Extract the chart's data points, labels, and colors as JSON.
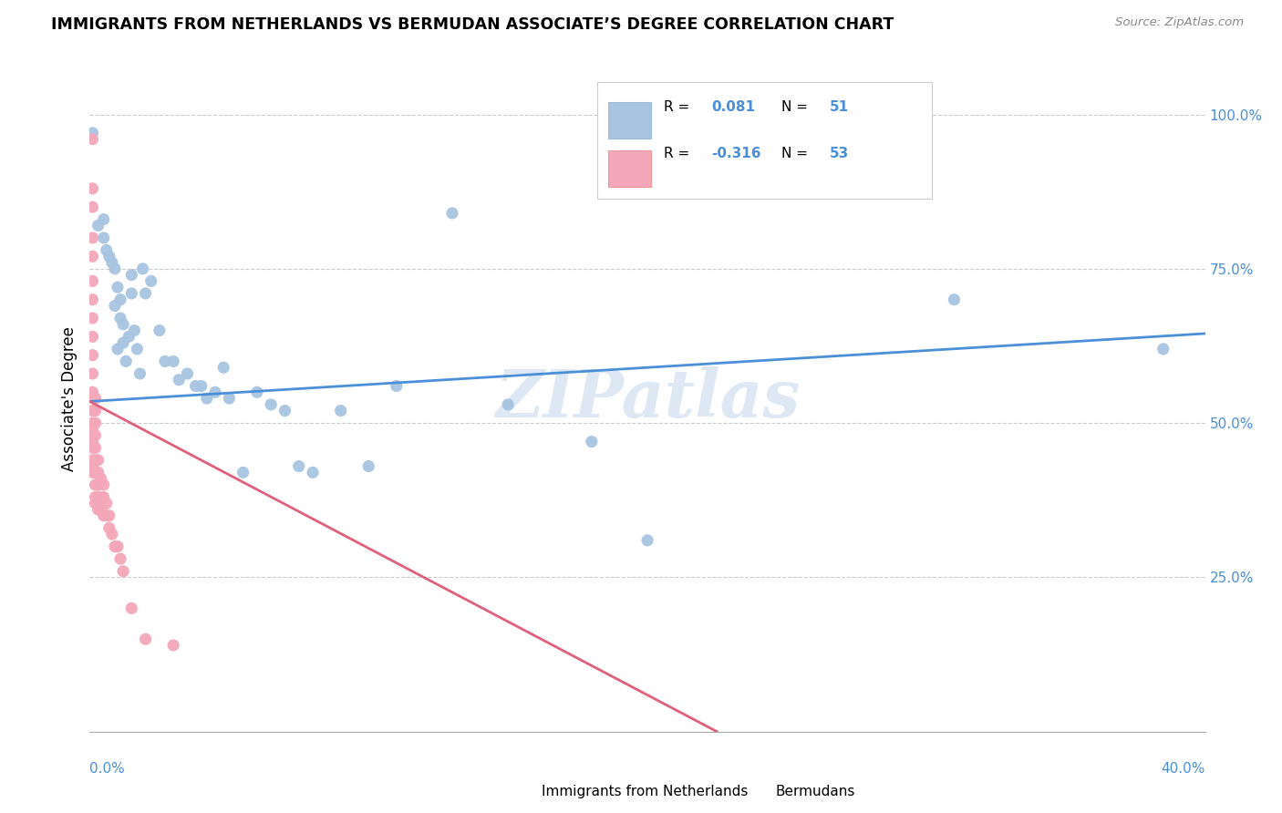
{
  "title": "IMMIGRANTS FROM NETHERLANDS VS BERMUDAN ASSOCIATE’S DEGREE CORRELATION CHART",
  "source": "Source: ZipAtlas.com",
  "ylabel_label": "Associate's Degree",
  "ylabel_vals": [
    0.0,
    0.25,
    0.5,
    0.75,
    1.0
  ],
  "ylabel_labels": [
    "",
    "25.0%",
    "50.0%",
    "75.0%",
    "100.0%"
  ],
  "xmin": 0.0,
  "xmax": 0.4,
  "ymin": 0.0,
  "ymax": 1.08,
  "blue_color": "#a8c4e0",
  "pink_color": "#f4a7b9",
  "blue_line_color": "#4a90d9",
  "pink_line_color": "#e0607a",
  "watermark": "ZIPatlas",
  "blue_dots_x": [
    0.001,
    0.003,
    0.005,
    0.005,
    0.006,
    0.007,
    0.008,
    0.009,
    0.009,
    0.01,
    0.01,
    0.011,
    0.011,
    0.012,
    0.012,
    0.013,
    0.014,
    0.015,
    0.015,
    0.016,
    0.017,
    0.018,
    0.019,
    0.02,
    0.022,
    0.025,
    0.027,
    0.03,
    0.032,
    0.035,
    0.038,
    0.04,
    0.042,
    0.045,
    0.048,
    0.05,
    0.055,
    0.06,
    0.065,
    0.07,
    0.075,
    0.08,
    0.09,
    0.1,
    0.11,
    0.13,
    0.15,
    0.18,
    0.2,
    0.31,
    0.385
  ],
  "blue_dots_y": [
    0.97,
    0.82,
    0.83,
    0.8,
    0.78,
    0.77,
    0.76,
    0.75,
    0.69,
    0.72,
    0.62,
    0.7,
    0.67,
    0.66,
    0.63,
    0.6,
    0.64,
    0.74,
    0.71,
    0.65,
    0.62,
    0.58,
    0.75,
    0.71,
    0.73,
    0.65,
    0.6,
    0.6,
    0.57,
    0.58,
    0.56,
    0.56,
    0.54,
    0.55,
    0.59,
    0.54,
    0.42,
    0.55,
    0.53,
    0.52,
    0.43,
    0.42,
    0.52,
    0.43,
    0.56,
    0.84,
    0.53,
    0.47,
    0.31,
    0.7,
    0.62
  ],
  "pink_dots_x": [
    0.001,
    0.001,
    0.001,
    0.001,
    0.001,
    0.001,
    0.001,
    0.001,
    0.001,
    0.001,
    0.001,
    0.001,
    0.001,
    0.001,
    0.001,
    0.001,
    0.001,
    0.001,
    0.001,
    0.001,
    0.002,
    0.002,
    0.002,
    0.002,
    0.002,
    0.002,
    0.002,
    0.002,
    0.002,
    0.002,
    0.003,
    0.003,
    0.003,
    0.003,
    0.003,
    0.004,
    0.004,
    0.004,
    0.005,
    0.005,
    0.005,
    0.006,
    0.006,
    0.007,
    0.007,
    0.008,
    0.009,
    0.01,
    0.011,
    0.012,
    0.015,
    0.02,
    0.03
  ],
  "pink_dots_y": [
    0.96,
    0.88,
    0.85,
    0.8,
    0.77,
    0.73,
    0.7,
    0.67,
    0.64,
    0.61,
    0.58,
    0.55,
    0.52,
    0.5,
    0.49,
    0.47,
    0.46,
    0.44,
    0.43,
    0.42,
    0.54,
    0.52,
    0.5,
    0.48,
    0.46,
    0.44,
    0.42,
    0.4,
    0.38,
    0.37,
    0.44,
    0.42,
    0.4,
    0.38,
    0.36,
    0.41,
    0.38,
    0.36,
    0.4,
    0.38,
    0.35,
    0.37,
    0.35,
    0.35,
    0.33,
    0.32,
    0.3,
    0.3,
    0.28,
    0.26,
    0.2,
    0.15,
    0.14
  ],
  "blue_trend_x": [
    0.0,
    0.4
  ],
  "blue_trend_y": [
    0.535,
    0.645
  ],
  "pink_trend_x": [
    0.0,
    0.225
  ],
  "pink_trend_y": [
    0.535,
    0.0
  ]
}
